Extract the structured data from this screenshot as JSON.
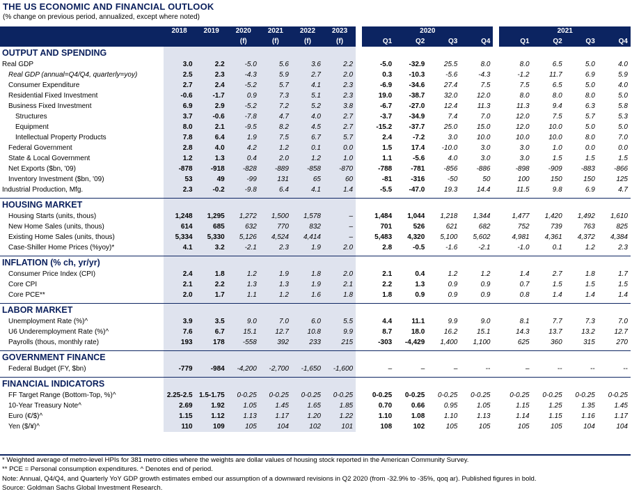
{
  "title": "THE US ECONOMIC AND FINANCIAL OUTLOOK",
  "subtitle": "(% change on previous period, annualized, except where noted)",
  "header": {
    "annual_years": [
      "2018",
      "2019",
      "2020",
      "2021",
      "2022",
      "2023"
    ],
    "annual_flags": [
      "",
      "",
      "(f)",
      "(f)",
      "(f)",
      "(f)"
    ],
    "year_2020": "2020",
    "year_2021": "2021",
    "quarters": [
      "Q1",
      "Q2",
      "Q3",
      "Q4",
      "Q1",
      "Q2",
      "Q3",
      "Q4"
    ]
  },
  "sections": [
    {
      "title": "OUTPUT AND SPENDING",
      "rows": [
        {
          "label": "Real GDP",
          "indent": 0,
          "italic": false,
          "a": [
            "3.0",
            "2.2",
            "-5.0",
            "5.6",
            "3.6",
            "2.2"
          ],
          "q": [
            "-5.0",
            "-32.9",
            "25.5",
            "8.0",
            "8.0",
            "6.5",
            "5.0",
            "4.0"
          ]
        },
        {
          "label": "Real GDP (annual=Q4/Q4, quarterly=yoy)",
          "indent": 1,
          "italic": true,
          "a": [
            "2.5",
            "2.3",
            "-4.3",
            "5.9",
            "2.7",
            "2.0"
          ],
          "q": [
            "0.3",
            "-10.3",
            "-5.6",
            "-4.3",
            "-1.2",
            "11.7",
            "6.9",
            "5.9"
          ]
        },
        {
          "label": "Consumer Expenditure",
          "indent": 1,
          "italic": false,
          "a": [
            "2.7",
            "2.4",
            "-5.2",
            "5.7",
            "4.1",
            "2.3"
          ],
          "q": [
            "-6.9",
            "-34.6",
            "27.4",
            "7.5",
            "7.5",
            "6.5",
            "5.0",
            "4.0"
          ]
        },
        {
          "label": "Residential Fixed Investment",
          "indent": 1,
          "italic": false,
          "a": [
            "-0.6",
            "-1.7",
            "0.9",
            "7.3",
            "5.1",
            "2.3"
          ],
          "q": [
            "19.0",
            "-38.7",
            "32.0",
            "12.0",
            "8.0",
            "8.0",
            "8.0",
            "5.0"
          ]
        },
        {
          "label": "Business Fixed Investment",
          "indent": 1,
          "italic": false,
          "a": [
            "6.9",
            "2.9",
            "-5.2",
            "7.2",
            "5.2",
            "3.8"
          ],
          "q": [
            "-6.7",
            "-27.0",
            "12.4",
            "11.3",
            "11.3",
            "9.4",
            "6.3",
            "5.8"
          ]
        },
        {
          "label": "Structures",
          "indent": 2,
          "italic": false,
          "a": [
            "3.7",
            "-0.6",
            "-7.8",
            "4.7",
            "4.0",
            "2.7"
          ],
          "q": [
            "-3.7",
            "-34.9",
            "7.4",
            "7.0",
            "12.0",
            "7.5",
            "5.7",
            "5.3"
          ]
        },
        {
          "label": "Equipment",
          "indent": 2,
          "italic": false,
          "a": [
            "8.0",
            "2.1",
            "-9.5",
            "8.2",
            "4.5",
            "2.7"
          ],
          "q": [
            "-15.2",
            "-37.7",
            "25.0",
            "15.0",
            "12.0",
            "10.0",
            "5.0",
            "5.0"
          ]
        },
        {
          "label": "Intellectual Property Products",
          "indent": 2,
          "italic": false,
          "a": [
            "7.8",
            "6.4",
            "1.9",
            "7.5",
            "6.7",
            "5.7"
          ],
          "q": [
            "2.4",
            "-7.2",
            "3.0",
            "10.0",
            "10.0",
            "10.0",
            "8.0",
            "7.0"
          ]
        },
        {
          "label": "Federal Government",
          "indent": 1,
          "italic": false,
          "a": [
            "2.8",
            "4.0",
            "4.2",
            "1.2",
            "0.1",
            "0.0"
          ],
          "q": [
            "1.5",
            "17.4",
            "-10.0",
            "3.0",
            "3.0",
            "1.0",
            "0.0",
            "0.0"
          ]
        },
        {
          "label": "State & Local Government",
          "indent": 1,
          "italic": false,
          "a": [
            "1.2",
            "1.3",
            "0.4",
            "2.0",
            "1.2",
            "1.0"
          ],
          "q": [
            "1.1",
            "-5.6",
            "4.0",
            "3.0",
            "3.0",
            "1.5",
            "1.5",
            "1.5"
          ]
        },
        {
          "label": "Net Exports ($bn, '09)",
          "indent": 1,
          "italic": false,
          "a": [
            "-878",
            "-918",
            "-828",
            "-889",
            "-858",
            "-870"
          ],
          "q": [
            "-788",
            "-781",
            "-856",
            "-886",
            "-898",
            "-909",
            "-883",
            "-866"
          ]
        },
        {
          "label": "Inventory Investment ($bn, '09)",
          "indent": 1,
          "italic": false,
          "a": [
            "53",
            "49",
            "-99",
            "131",
            "65",
            "60"
          ],
          "q": [
            "-81",
            "-316",
            "-50",
            "50",
            "100",
            "150",
            "150",
            "125"
          ]
        },
        {
          "label": "Industrial Production, Mfg.",
          "indent": 0,
          "italic": false,
          "a": [
            "2.3",
            "-0.2",
            "-9.8",
            "6.4",
            "4.1",
            "1.4"
          ],
          "q": [
            "-5.5",
            "-47.0",
            "19.3",
            "14.4",
            "11.5",
            "9.8",
            "6.9",
            "4.7"
          ]
        }
      ]
    },
    {
      "title": "HOUSING MARKET",
      "rows": [
        {
          "label": "Housing Starts (units, thous)",
          "indent": 1,
          "italic": false,
          "a": [
            "1,248",
            "1,295",
            "1,272",
            "1,500",
            "1,578",
            "–"
          ],
          "q": [
            "1,484",
            "1,044",
            "1,218",
            "1,344",
            "1,477",
            "1,420",
            "1,492",
            "1,610"
          ]
        },
        {
          "label": "New Home Sales (units, thous)",
          "indent": 1,
          "italic": false,
          "a": [
            "614",
            "685",
            "632",
            "770",
            "832",
            "–"
          ],
          "q": [
            "701",
            "526",
            "621",
            "682",
            "752",
            "739",
            "763",
            "825"
          ]
        },
        {
          "label": "Existing Home Sales (units, thous)",
          "indent": 1,
          "italic": false,
          "a": [
            "5,334",
            "5,330",
            "5,126",
            "4,524",
            "4,414",
            "–"
          ],
          "q": [
            "5,483",
            "4,320",
            "5,100",
            "5,602",
            "4,981",
            "4,361",
            "4,372",
            "4,384"
          ]
        },
        {
          "label": "Case-Shiller Home Prices (%yoy)*",
          "indent": 1,
          "italic": false,
          "a": [
            "4.1",
            "3.2",
            "-2.1",
            "2.3",
            "1.9",
            "2.0"
          ],
          "q": [
            "2.8",
            "-0.5",
            "-1.6",
            "-2.1",
            "-1.0",
            "0.1",
            "1.2",
            "2.3"
          ]
        }
      ]
    },
    {
      "title": "INFLATION (% ch, yr/yr)",
      "rows": [
        {
          "label": "Consumer Price Index (CPI)",
          "indent": 1,
          "italic": false,
          "a": [
            "2.4",
            "1.8",
            "1.2",
            "1.9",
            "1.8",
            "2.0"
          ],
          "q": [
            "2.1",
            "0.4",
            "1.2",
            "1.2",
            "1.4",
            "2.7",
            "1.8",
            "1.7"
          ]
        },
        {
          "label": "Core CPI",
          "indent": 1,
          "italic": false,
          "a": [
            "2.1",
            "2.2",
            "1.3",
            "1.3",
            "1.9",
            "2.1"
          ],
          "q": [
            "2.2",
            "1.3",
            "0.9",
            "0.9",
            "0.7",
            "1.5",
            "1.5",
            "1.5"
          ]
        },
        {
          "label": "Core PCE**",
          "indent": 1,
          "italic": false,
          "a": [
            "2.0",
            "1.7",
            "1.1",
            "1.2",
            "1.6",
            "1.8"
          ],
          "q": [
            "1.8",
            "0.9",
            "0.9",
            "0.9",
            "0.8",
            "1.4",
            "1.4",
            "1.4"
          ]
        }
      ]
    },
    {
      "title": "LABOR MARKET",
      "rows": [
        {
          "label": "Unemployment Rate (%)^",
          "indent": 1,
          "italic": false,
          "a": [
            "3.9",
            "3.5",
            "9.0",
            "7.0",
            "6.0",
            "5.5"
          ],
          "q": [
            "4.4",
            "11.1",
            "9.9",
            "9.0",
            "8.1",
            "7.7",
            "7.3",
            "7.0"
          ]
        },
        {
          "label": "U6 Underemployment Rate (%)^",
          "indent": 1,
          "italic": false,
          "a": [
            "7.6",
            "6.7",
            "15.1",
            "12.7",
            "10.8",
            "9.9"
          ],
          "q": [
            "8.7",
            "18.0",
            "16.2",
            "15.1",
            "14.3",
            "13.7",
            "13.2",
            "12.7"
          ]
        },
        {
          "label": "Payrolls (thous, monthly rate)",
          "indent": 1,
          "italic": false,
          "a": [
            "193",
            "178",
            "-558",
            "392",
            "233",
            "215"
          ],
          "q": [
            "-303",
            "-4,429",
            "1,400",
            "1,100",
            "625",
            "360",
            "315",
            "270"
          ]
        }
      ]
    },
    {
      "title": "GOVERNMENT FINANCE",
      "rows": [
        {
          "label": "Federal Budget (FY, $bn)",
          "indent": 1,
          "italic": false,
          "a": [
            "-779",
            "-984",
            "-4,200",
            "-2,700",
            "-1,650",
            "-1,600"
          ],
          "q": [
            "–",
            "–",
            "–",
            "--",
            "–",
            "--",
            "--",
            "--"
          ]
        }
      ]
    },
    {
      "title": "FINANCIAL INDICATORS",
      "rows": [
        {
          "label": "FF Target Range (Bottom-Top, %)^",
          "indent": 1,
          "italic": false,
          "a": [
            "2.25-2.5",
            "1.5-1.75",
            "0-0.25",
            "0-0.25",
            "0-0.25",
            "0-0.25"
          ],
          "q": [
            "0-0.25",
            "0-0.25",
            "0-0.25",
            "0-0.25",
            "0-0.25",
            "0-0.25",
            "0-0.25",
            "0-0.25"
          ]
        },
        {
          "label": "10-Year Treasury Note^",
          "indent": 1,
          "italic": false,
          "a": [
            "2.69",
            "1.92",
            "1.05",
            "1.45",
            "1.65",
            "1.85"
          ],
          "q": [
            "0.70",
            "0.66",
            "0.95",
            "1.05",
            "1.15",
            "1.25",
            "1.35",
            "1.45"
          ]
        },
        {
          "label": "Euro (€/$)^",
          "indent": 1,
          "italic": false,
          "a": [
            "1.15",
            "1.12",
            "1.13",
            "1.17",
            "1.20",
            "1.22"
          ],
          "q": [
            "1.10",
            "1.08",
            "1.10",
            "1.13",
            "1.14",
            "1.15",
            "1.16",
            "1.17"
          ]
        },
        {
          "label": "Yen ($/¥)^",
          "indent": 1,
          "italic": false,
          "a": [
            "110",
            "109",
            "105",
            "104",
            "102",
            "101"
          ],
          "q": [
            "108",
            "102",
            "105",
            "105",
            "105",
            "105",
            "104",
            "104"
          ]
        }
      ]
    }
  ],
  "footnotes": [
    "* Weighted average of metro-level HPIs for 381 metro cities where the weights are dollar values of housing stock reported in the American Community Survey.",
    "** PCE = Personal consumption expenditures.   ^ Denotes end of period.",
    "Note: Annual, Q4/Q4, and Quarterly YoY GDP growth estimates embed our assumption of a downward revisions in Q2 2020 (from -32.9% to -35%, qoq ar). Published figures in bold.",
    "Source: Goldman Sachs Global Investment Research."
  ]
}
